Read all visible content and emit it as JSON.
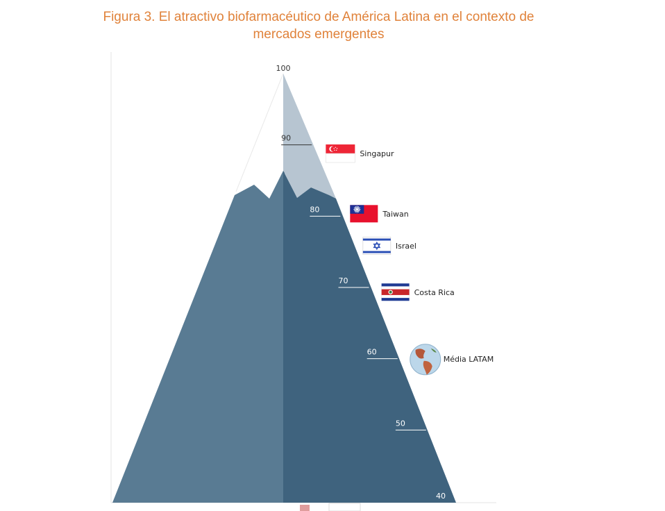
{
  "title": {
    "line1": "Figura 3.  El atractivo biofarmacéutico de América Latina en el contexto de",
    "line2": "mercados emergentes"
  },
  "chart_data": {
    "type": "other",
    "ylim": [
      40,
      100
    ],
    "ticks": [
      100,
      90,
      80,
      70,
      60,
      50,
      40
    ],
    "markers": [
      {
        "label": "Singapur",
        "value": 88.5,
        "icon": "singapore-flag-icon"
      },
      {
        "label": "Taiwan",
        "value": 80,
        "icon": "taiwan-flag-icon"
      },
      {
        "label": "Israel",
        "value": 75.5,
        "icon": "israel-flag-icon"
      },
      {
        "label": "Costa Rica",
        "value": 69,
        "icon": "costa-rica-flag-icon"
      },
      {
        "label": "Média LATAM",
        "value": 59.5,
        "icon": "americas-globe-icon"
      }
    ]
  },
  "colors": {
    "title": "#e0823a",
    "mountain_left": "#597b93",
    "mountain_right": "#3f637e",
    "snow": "#b7c5d1"
  }
}
